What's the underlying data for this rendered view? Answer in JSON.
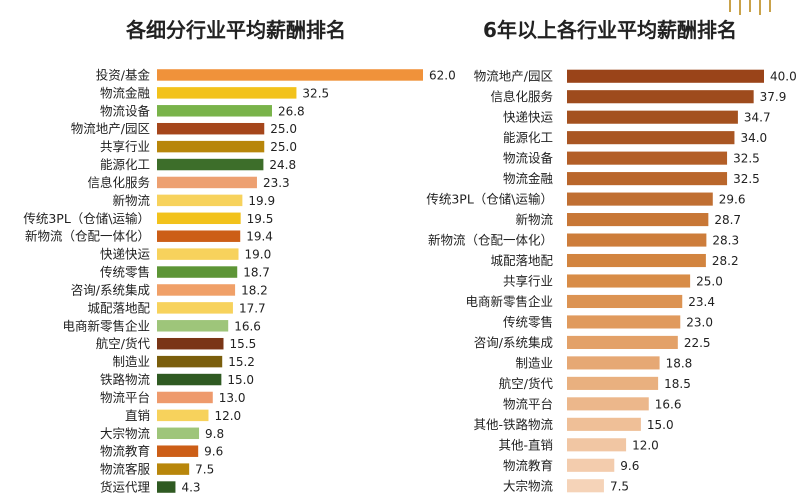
{
  "colors": {
    "left_palette": [
      "#f0923a",
      "#f2c21b",
      "#79b34a",
      "#a5461b",
      "#b8860b",
      "#3d6e2a",
      "#eda071",
      "#f7d25c",
      "#f2c21b",
      "#cc5e17",
      "#f7d25c",
      "#5d9536",
      "#f0a068",
      "#f7d25c",
      "#9ec57a",
      "#7a3516",
      "#7a5e0c",
      "#2f5a22",
      "#ee9a6c",
      "#f7d25c",
      "#9ec57a",
      "#cc5e17",
      "#b8860b",
      "#2f5a22"
    ],
    "right_palette": [
      "#9a4419",
      "#9e4b1d",
      "#a4511f",
      "#a95623",
      "#b35e27",
      "#b9662b",
      "#c06f32",
      "#c87736",
      "#cd7d3b",
      "#d2843f",
      "#d88c47",
      "#dc9352",
      "#e09a5d",
      "#e3a168",
      "#e6a874",
      "#e9b07f",
      "#ecb78b",
      "#efbf97",
      "#f1c6a3",
      "#f3ccad",
      "#f5d3b8",
      "#f7d9c2"
    ],
    "accent_decoration": "#c9a24a"
  },
  "chart_data": [
    {
      "type": "bar",
      "orientation": "horizontal",
      "title": "各细分行业平均薪酬排名",
      "categories": [
        "投资/基金",
        "物流金融",
        "物流设备",
        "物流地产/园区",
        "共享行业",
        "能源化工",
        "信息化服务",
        "新物流",
        "传统3PL（仓储\\运输）",
        "新物流（仓配一体化）",
        "快递快运",
        "传统零售",
        "咨询/系统集成",
        "城配落地配",
        "电商新零售企业",
        "航空/货代",
        "制造业",
        "铁路物流",
        "物流平台",
        "直销",
        "大宗物流",
        "物流教育",
        "物流客服",
        "货运代理"
      ],
      "values": [
        62.0,
        32.5,
        26.8,
        25.0,
        25.0,
        24.8,
        23.3,
        19.9,
        19.5,
        19.4,
        19.0,
        18.7,
        18.2,
        17.7,
        16.6,
        15.5,
        15.2,
        15.0,
        13.0,
        12.0,
        9.8,
        9.6,
        7.5,
        4.3
      ],
      "value_labels": [
        "62.0",
        "32.5",
        "26.8",
        "25.0",
        "25.0",
        "24.8",
        "23.3",
        "19.9",
        "19.5",
        "19.4",
        "19.0",
        "18.7",
        "18.2",
        "17.7",
        "16.6",
        "15.5",
        "15.2",
        "15.0",
        "13.0",
        "12.0",
        "9.8",
        "9.6",
        "7.5",
        "4.3"
      ],
      "xlim": [
        0,
        62.0
      ],
      "grid": false,
      "legend": "none"
    },
    {
      "type": "bar",
      "orientation": "horizontal",
      "title": "6年以上各行业平均薪酬排名",
      "categories": [
        "物流地产/园区",
        "信息化服务",
        "快递快运",
        "能源化工",
        "物流设备",
        "物流金融",
        "传统3PL（仓储\\运输）",
        "新物流",
        "新物流（仓配一体化）",
        "城配落地配",
        "共享行业",
        "电商新零售企业",
        "传统零售",
        "咨询/系统集成",
        "制造业",
        "航空/货代",
        "物流平台",
        "其他-铁路物流",
        "其他-直销",
        "物流教育",
        "大宗物流"
      ],
      "values": [
        40.0,
        37.9,
        34.7,
        34.0,
        32.5,
        32.5,
        29.6,
        28.7,
        28.3,
        28.2,
        25.0,
        23.4,
        23.0,
        22.5,
        18.8,
        18.5,
        16.6,
        15.0,
        12.0,
        9.6,
        7.5
      ],
      "value_labels": [
        "40.0",
        "37.9",
        "34.7",
        "34.0",
        "32.5",
        "32.5",
        "29.6",
        "28.7",
        "28.3",
        "28.2",
        "25.0",
        "23.4",
        "23.0",
        "22.5",
        "18.8",
        "18.5",
        "16.6",
        "15.0",
        "12.0",
        "9.6",
        "7.5"
      ],
      "xlim": [
        0,
        40.0
      ],
      "grid": false,
      "legend": "none"
    }
  ]
}
